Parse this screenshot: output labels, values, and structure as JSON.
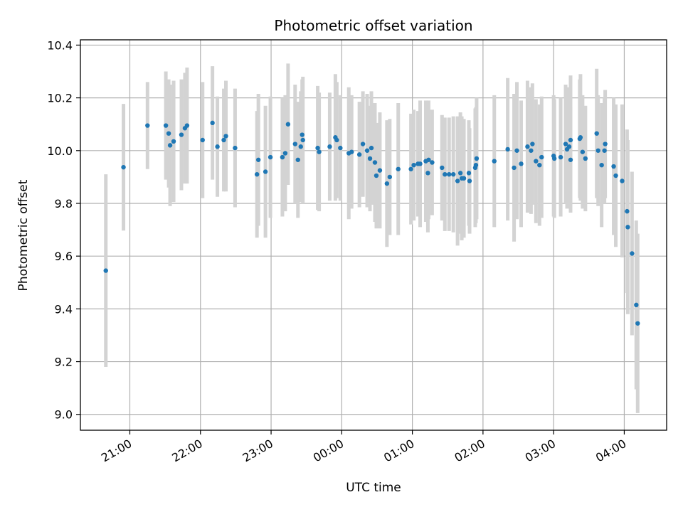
{
  "chart_data": {
    "type": "scatter",
    "title": "Photometric offset variation",
    "xlabel": "UTC time",
    "ylabel": "Photometric offset",
    "x_unit": "hours",
    "xlim": [
      -3.7,
      4.6
    ],
    "ylim": [
      8.94,
      10.42
    ],
    "grid": true,
    "x_ticks": [
      {
        "value": -3,
        "label": "21:00"
      },
      {
        "value": -2,
        "label": "22:00"
      },
      {
        "value": -1,
        "label": "23:00"
      },
      {
        "value": 0,
        "label": "00:00"
      },
      {
        "value": 1,
        "label": "01:00"
      },
      {
        "value": 2,
        "label": "02:00"
      },
      {
        "value": 3,
        "label": "03:00"
      },
      {
        "value": 4,
        "label": "04:00"
      }
    ],
    "y_ticks": [
      {
        "value": 9.0,
        "label": "9.0"
      },
      {
        "value": 9.2,
        "label": "9.2"
      },
      {
        "value": 9.4,
        "label": "9.4"
      },
      {
        "value": 9.6,
        "label": "9.6"
      },
      {
        "value": 9.8,
        "label": "9.8"
      },
      {
        "value": 10.0,
        "label": "10.0"
      },
      {
        "value": 10.2,
        "label": "10.2"
      },
      {
        "value": 10.4,
        "label": "10.4"
      }
    ],
    "colors": {
      "point": "#1f77b4",
      "errorbar": "#d3d3d3",
      "grid": "#b0b0b0"
    },
    "points": [
      [
        -3.34,
        9.545,
        0.365
      ],
      [
        -3.09,
        9.937,
        0.24
      ],
      [
        -2.75,
        10.095,
        0.165
      ],
      [
        -2.49,
        10.095,
        0.205
      ],
      [
        -2.45,
        10.065,
        0.205
      ],
      [
        -2.43,
        10.02,
        0.23
      ],
      [
        -2.38,
        10.035,
        0.23
      ],
      [
        -2.27,
        10.06,
        0.21
      ],
      [
        -2.22,
        10.085,
        0.21
      ],
      [
        -2.19,
        10.095,
        0.22
      ],
      [
        -1.97,
        10.04,
        0.22
      ],
      [
        -1.83,
        10.105,
        0.215
      ],
      [
        -1.76,
        10.015,
        0.19
      ],
      [
        -1.67,
        10.04,
        0.195
      ],
      [
        -1.64,
        10.055,
        0.21
      ],
      [
        -1.51,
        10.01,
        0.225
      ],
      [
        -1.2,
        9.91,
        0.24
      ],
      [
        -1.18,
        9.965,
        0.25
      ],
      [
        -1.08,
        9.92,
        0.25
      ],
      [
        -1.01,
        9.975,
        0.23
      ],
      [
        -0.84,
        9.975,
        0.225
      ],
      [
        -0.8,
        9.99,
        0.22
      ],
      [
        -0.76,
        10.1,
        0.23
      ],
      [
        -0.66,
        10.025,
        0.225
      ],
      [
        -0.62,
        9.965,
        0.22
      ],
      [
        -0.58,
        10.015,
        0.21
      ],
      [
        -0.56,
        10.06,
        0.21
      ],
      [
        -0.55,
        10.04,
        0.24
      ],
      [
        -0.34,
        10.01,
        0.235
      ],
      [
        -0.32,
        9.995,
        0.225
      ],
      [
        -0.17,
        10.015,
        0.205
      ],
      [
        -0.09,
        10.05,
        0.24
      ],
      [
        -0.07,
        10.04,
        0.22
      ],
      [
        -0.02,
        10.01,
        0.2
      ],
      [
        0.1,
        9.99,
        0.25
      ],
      [
        0.14,
        9.995,
        0.215
      ],
      [
        0.25,
        9.985,
        0.2
      ],
      [
        0.3,
        10.025,
        0.2
      ],
      [
        0.36,
        10.0,
        0.215
      ],
      [
        0.4,
        9.97,
        0.2
      ],
      [
        0.42,
        10.01,
        0.215
      ],
      [
        0.47,
        9.955,
        0.225
      ],
      [
        0.49,
        9.905,
        0.2
      ],
      [
        0.54,
        9.925,
        0.22
      ],
      [
        0.64,
        9.875,
        0.24
      ],
      [
        0.68,
        9.9,
        0.22
      ],
      [
        0.8,
        9.93,
        0.25
      ],
      [
        0.98,
        9.93,
        0.21
      ],
      [
        1.02,
        9.945,
        0.21
      ],
      [
        1.08,
        9.95,
        0.2
      ],
      [
        1.11,
        9.95,
        0.24
      ],
      [
        1.19,
        9.96,
        0.23
      ],
      [
        1.22,
        9.915,
        0.225
      ],
      [
        1.23,
        9.965,
        0.225
      ],
      [
        1.28,
        9.955,
        0.2
      ],
      [
        1.42,
        9.935,
        0.2
      ],
      [
        1.46,
        9.91,
        0.215
      ],
      [
        1.52,
        9.91,
        0.215
      ],
      [
        1.58,
        9.91,
        0.22
      ],
      [
        1.64,
        9.885,
        0.245
      ],
      [
        1.68,
        9.915,
        0.23
      ],
      [
        1.7,
        9.895,
        0.235
      ],
      [
        1.73,
        9.895,
        0.225
      ],
      [
        1.8,
        9.915,
        0.2
      ],
      [
        1.81,
        9.885,
        0.2
      ],
      [
        1.89,
        9.935,
        0.225
      ],
      [
        1.9,
        9.945,
        0.22
      ],
      [
        1.91,
        9.97,
        0.23
      ],
      [
        2.16,
        9.96,
        0.25
      ],
      [
        2.35,
        10.005,
        0.27
      ],
      [
        2.44,
        9.935,
        0.28
      ],
      [
        2.48,
        10.0,
        0.26
      ],
      [
        2.54,
        9.95,
        0.24
      ],
      [
        2.63,
        10.015,
        0.25
      ],
      [
        2.68,
        10.0,
        0.24
      ],
      [
        2.7,
        10.025,
        0.23
      ],
      [
        2.75,
        9.96,
        0.235
      ],
      [
        2.8,
        9.945,
        0.23
      ],
      [
        2.83,
        9.975,
        0.23
      ],
      [
        3.0,
        9.98,
        0.23
      ],
      [
        3.01,
        9.97,
        0.225
      ],
      [
        3.1,
        9.975,
        0.225
      ],
      [
        3.17,
        10.025,
        0.225
      ],
      [
        3.19,
        10.005,
        0.225
      ],
      [
        3.22,
        10.015,
        0.225
      ],
      [
        3.24,
        10.04,
        0.245
      ],
      [
        3.24,
        9.965,
        0.2
      ],
      [
        3.37,
        10.045,
        0.225
      ],
      [
        3.38,
        10.05,
        0.24
      ],
      [
        3.41,
        9.995,
        0.215
      ],
      [
        3.45,
        9.97,
        0.2
      ],
      [
        3.61,
        10.065,
        0.245
      ],
      [
        3.63,
        10.0,
        0.21
      ],
      [
        3.68,
        9.945,
        0.235
      ],
      [
        3.72,
        10.0,
        0.2
      ],
      [
        3.73,
        10.025,
        0.205
      ],
      [
        3.85,
        9.94,
        0.26
      ],
      [
        3.88,
        9.905,
        0.27
      ],
      [
        3.97,
        9.885,
        0.29
      ],
      [
        4.04,
        9.77,
        0.31
      ],
      [
        4.05,
        9.71,
        0.33
      ],
      [
        4.11,
        9.61,
        0.31
      ],
      [
        4.17,
        9.415,
        0.32
      ],
      [
        4.19,
        9.345,
        0.34
      ]
    ]
  }
}
